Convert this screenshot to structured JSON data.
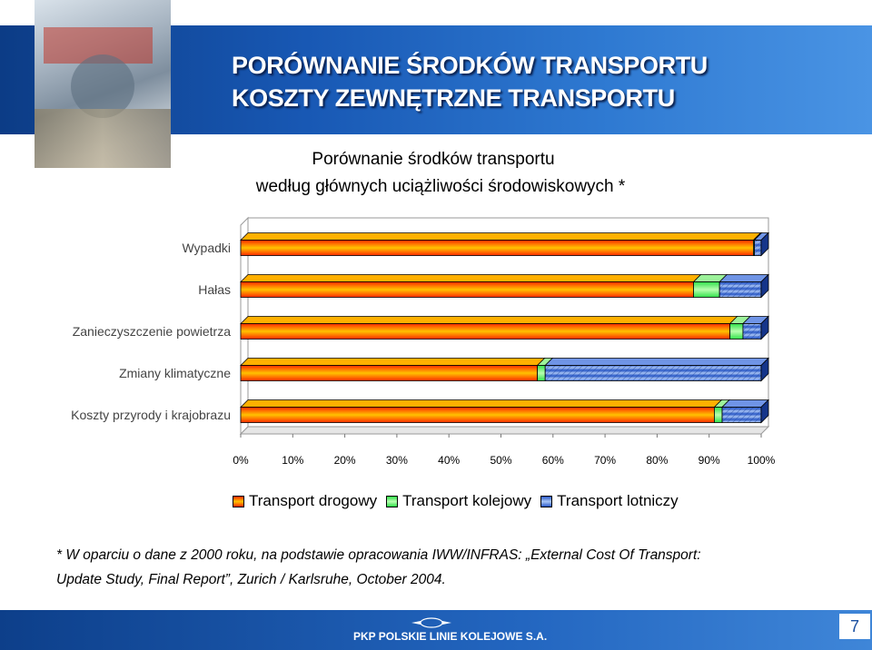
{
  "header": {
    "title_line1": "PORÓWNANIE ŚRODKÓW TRANSPORTU",
    "title_line2": "KOSZTY ZEWNĘTRZNE TRANSPORTU"
  },
  "subtitle": {
    "line1": "Porównanie środków transportu",
    "line2": "według głównych uciążliwości środowiskowych *"
  },
  "chart_data": {
    "type": "bar",
    "orientation": "horizontal",
    "stacked": "percent",
    "categories": [
      "Wypadki",
      "Hałas",
      "Zanieczyszczenie powietrza",
      "Zmiany klimatyczne",
      "Koszty przyrody i krajobrazu"
    ],
    "series": [
      {
        "name": "Transport drogowy",
        "values": [
          98.5,
          87,
          94,
          57,
          91
        ]
      },
      {
        "name": "Transport kolejowy",
        "values": [
          0.2,
          5,
          2.5,
          1.5,
          1.5
        ]
      },
      {
        "name": "Transport lotniczy",
        "values": [
          1.3,
          8,
          3.5,
          41.5,
          7.5
        ]
      }
    ],
    "xticks": [
      "0%",
      "10%",
      "20%",
      "30%",
      "40%",
      "50%",
      "60%",
      "70%",
      "80%",
      "90%",
      "100%"
    ],
    "xlim": [
      0,
      100
    ],
    "legend_position": "bottom",
    "colors": {
      "Transport drogowy": [
        "#ff2a00",
        "#ffc200"
      ],
      "Transport kolejowy": [
        "#2fe04a",
        "#b8ffb0"
      ],
      "Transport lotniczy": [
        "#2a59c8",
        "#a8c4f4"
      ]
    }
  },
  "legend": {
    "road": "Transport drogowy",
    "rail": "Transport kolejowy",
    "air": "Transport lotniczy"
  },
  "footnote": {
    "line1": "* W oparciu o dane z 2000 roku, na podstawie opracowania IWW/INFRAS: „External Cost Of Transport:",
    "line2": "Update Study, Final Report”, Zurich / Karlsruhe, October 2004."
  },
  "footer": {
    "company": "PKP POLSKIE LINIE KOLEJOWE S.A.",
    "page_number": "7"
  }
}
